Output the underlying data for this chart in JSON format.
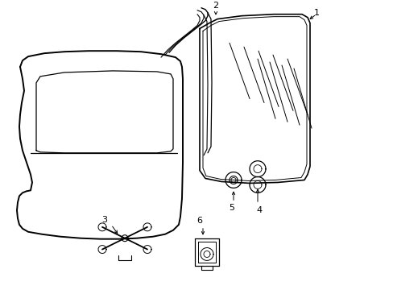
{
  "background_color": "#ffffff",
  "line_color": "#000000",
  "fig_width": 4.89,
  "fig_height": 3.6,
  "dpi": 100,
  "label_fontsize": 8
}
